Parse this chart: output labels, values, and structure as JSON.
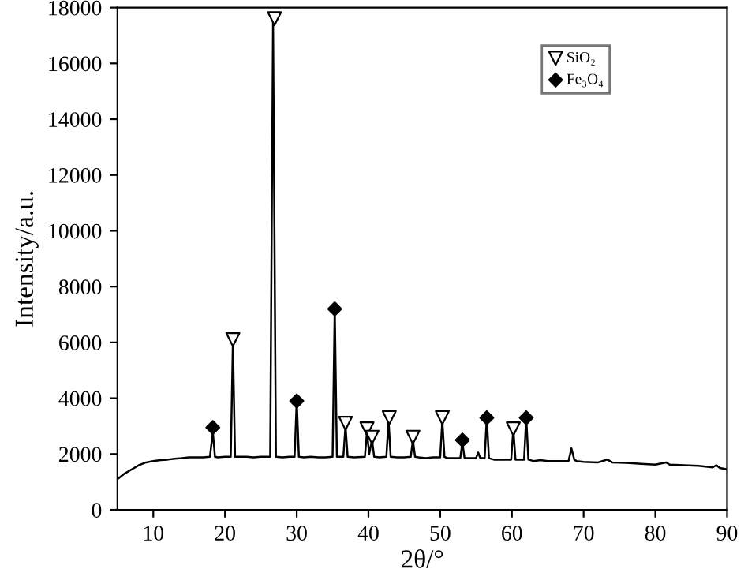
{
  "chart_data": {
    "type": "line",
    "xlabel": "2θ/°",
    "ylabel": "Intensity/a.u.",
    "xlim": [
      5,
      90
    ],
    "ylim": [
      0,
      18000
    ],
    "xticks": [
      10,
      20,
      30,
      40,
      50,
      60,
      70,
      80,
      90
    ],
    "yticks": [
      0,
      2000,
      4000,
      6000,
      8000,
      10000,
      12000,
      14000,
      16000,
      18000
    ],
    "grid": false,
    "legend": "top right",
    "series": [
      {
        "color": "#000000",
        "x": [
          5,
          6,
          7,
          8,
          9,
          10,
          11,
          12,
          13,
          14,
          15,
          16,
          17,
          17.9,
          18.3,
          18.6,
          19,
          20,
          20.8,
          21.1,
          21.4,
          22,
          23,
          24,
          25,
          26.3,
          26.7,
          27.1,
          28,
          29,
          29.7,
          30,
          30.3,
          31,
          32,
          33,
          34,
          35,
          35.3,
          35.6,
          36.5,
          36.8,
          37.1,
          38,
          39.5,
          39.8,
          40.1,
          40.5,
          40.8,
          41.5,
          42.5,
          42.8,
          43.1,
          44,
          45,
          45.9,
          46.2,
          46.5,
          47,
          48,
          49,
          50,
          50.3,
          50.6,
          51,
          52,
          52.8,
          53.1,
          53.4,
          54,
          55,
          55.3,
          55.6,
          56.2,
          56.5,
          56.8,
          57.5,
          59,
          59.9,
          60.2,
          60.5,
          61,
          61.7,
          62,
          62.3,
          63,
          64,
          65,
          66,
          67,
          67.9,
          68.3,
          68.7,
          69,
          70,
          72,
          73.3,
          74,
          76,
          78,
          80,
          81.5,
          82,
          84,
          86,
          88,
          88.5,
          89,
          90
        ],
        "values": [
          1100,
          1300,
          1450,
          1600,
          1700,
          1750,
          1780,
          1800,
          1830,
          1850,
          1880,
          1880,
          1880,
          1900,
          2800,
          1900,
          1880,
          1900,
          1900,
          6000,
          1900,
          1900,
          1900,
          1880,
          1900,
          1900,
          17500,
          1900,
          1880,
          1900,
          1900,
          3900,
          1900,
          1880,
          1900,
          1880,
          1880,
          1900,
          7200,
          1900,
          1900,
          3000,
          1900,
          1880,
          1900,
          2800,
          2000,
          2500,
          1900,
          1880,
          1900,
          3200,
          1900,
          1880,
          1880,
          1900,
          2500,
          1900,
          1880,
          1850,
          1880,
          1880,
          3200,
          1900,
          1850,
          1850,
          1850,
          2400,
          1850,
          1850,
          1850,
          2050,
          1850,
          1850,
          3300,
          1850,
          1800,
          1800,
          1800,
          2900,
          1800,
          1800,
          1800,
          3300,
          1800,
          1750,
          1780,
          1750,
          1750,
          1750,
          1750,
          2200,
          1800,
          1750,
          1720,
          1700,
          1800,
          1700,
          1680,
          1650,
          1620,
          1700,
          1620,
          1600,
          1580,
          1520,
          1600,
          1500,
          1450
        ]
      },
      {
        "type": "scatter",
        "name": "SiO₂",
        "color": "#000000",
        "marker": "triangle",
        "x": [
          21.1,
          26.9,
          36.8,
          39.8,
          40.5,
          42.9,
          46.2,
          50.3,
          60.2
        ],
        "values": [
          6100,
          17600,
          3100,
          2900,
          2600,
          3300,
          2600,
          3300,
          2900
        ]
      },
      {
        "type": "scatter",
        "name": "Fe₃O₄",
        "color": "#000000",
        "marker": "diamond",
        "x": [
          18.3,
          30.0,
          35.3,
          53.1,
          56.5,
          62.0
        ],
        "values": [
          2950,
          3900,
          7200,
          2500,
          3300,
          3300
        ]
      }
    ]
  }
}
